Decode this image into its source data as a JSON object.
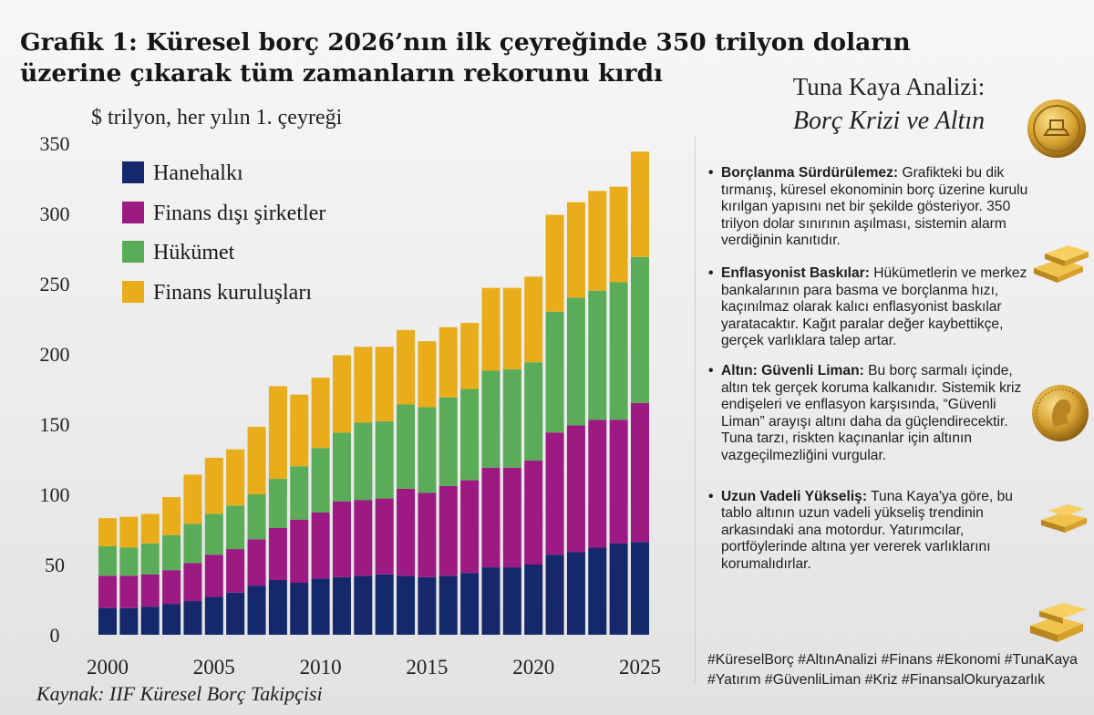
{
  "title": "Grafik 1: Küresel borç 2026’nın ilk çeyreğinde 350 trilyon doların üzerine çıkarak tüm zamanların rekorunu kırdı",
  "unit_label": "$ trilyon, her yılın 1. çeyreği",
  "source": "Kaynak: IIF Küresel Borç Takipçisi",
  "colors": {
    "hanehalki": "#14286b",
    "sirketler": "#9c1a81",
    "hukumet": "#5aac58",
    "finans": "#e9ad1b",
    "gold": "#d8a634"
  },
  "chart_data": {
    "type": "bar",
    "stacked": true,
    "x": [
      2000,
      2001,
      2002,
      2003,
      2004,
      2005,
      2006,
      2007,
      2008,
      2009,
      2010,
      2011,
      2012,
      2013,
      2014,
      2015,
      2016,
      2017,
      2018,
      2019,
      2020,
      2021,
      2022,
      2023,
      2024,
      2025
    ],
    "xticks": [
      "2000",
      "2005",
      "2010",
      "2015",
      "2020",
      "2025"
    ],
    "yticks": [
      "0",
      "50",
      "100",
      "150",
      "200",
      "250",
      "300",
      "350"
    ],
    "ylim": [
      0,
      350
    ],
    "legend_position": "top-left",
    "grid": false,
    "series": [
      {
        "name": "Hanehalkı",
        "color_key": "hanehalki",
        "values": [
          19,
          19,
          20,
          22,
          24,
          27,
          30,
          35,
          39,
          37,
          40,
          41,
          42,
          43,
          42,
          41,
          42,
          44,
          48,
          48,
          50,
          57,
          59,
          62,
          65,
          66
        ]
      },
      {
        "name": "Finans dışı şirketler",
        "color_key": "sirketler",
        "values": [
          23,
          23,
          23,
          24,
          27,
          30,
          31,
          33,
          37,
          45,
          47,
          54,
          54,
          54,
          62,
          60,
          64,
          66,
          71,
          71,
          74,
          87,
          90,
          91,
          88,
          99
        ]
      },
      {
        "name": "Hükümet",
        "color_key": "hukumet",
        "values": [
          21,
          20,
          22,
          25,
          28,
          29,
          31,
          32,
          35,
          38,
          46,
          49,
          55,
          55,
          60,
          61,
          63,
          65,
          69,
          70,
          70,
          86,
          91,
          92,
          98,
          104
        ]
      },
      {
        "name": "Finans kuruluşları",
        "color_key": "finans",
        "values": [
          20,
          22,
          21,
          27,
          35,
          40,
          40,
          48,
          66,
          51,
          50,
          55,
          54,
          53,
          53,
          47,
          50,
          47,
          59,
          58,
          61,
          69,
          68,
          71,
          68,
          75
        ]
      }
    ]
  },
  "side": {
    "heading1": "Tuna Kaya Analizi:",
    "heading2": "Borç Krizi ve Altın",
    "bullets": [
      {
        "label": "Borçlanma Sürdürülemez:",
        "text": "Grafikteki bu dik tırmanış, küresel ekonominin borç üzerine kurulu kırılgan yapısını net bir şekilde gösteriyor. 350 trilyon dolar sınırının aşılması, sistemin alarm verdiğinin kanıtıdır."
      },
      {
        "label": "Enflasyonist Baskılar:",
        "text": "Hükümetlerin ve merkez bankalarının para basma ve borçlanma hızı, kaçınılmaz olarak kalıcı enflasyonist baskılar yaratacaktır. Kağıt paralar değer kaybettikçe, gerçek varlıklara talep artar."
      },
      {
        "label": "Altın: Güvenli Liman:",
        "text": "Bu borç sarmalı içinde, altın tek gerçek koruma kalkanıdır. Sistemik kriz endişeleri ve enflasyon karşısında, “Güvenli Liman” arayışı altını daha da güçlendirecektir. Tuna tarzı, riskten kaçınanlar için altının vazgeçilmezliğini vurgular."
      },
      {
        "label": "Uzun Vadeli Yükseliş:",
        "text": "Tuna Kaya'ya göre, bu tablo altının uzun vadeli yükseliş trendinin arkasındaki ana motordur. Yatırımcılar, portföylerinde altına yer vererek varlıklarını korumalıdırlar."
      }
    ],
    "hashtags": "#KüreselBorç #AltınAnalizi #Finans #Ekonomi #TunaKaya #Yatırım #GüvenliLiman #Kriz #FinansalOkuryazarlık"
  },
  "icons": [
    "gold-coin-icon",
    "gold-bars-icon",
    "gold-coin-portrait-icon",
    "gold-bars-icon",
    "gold-bars-icon"
  ]
}
